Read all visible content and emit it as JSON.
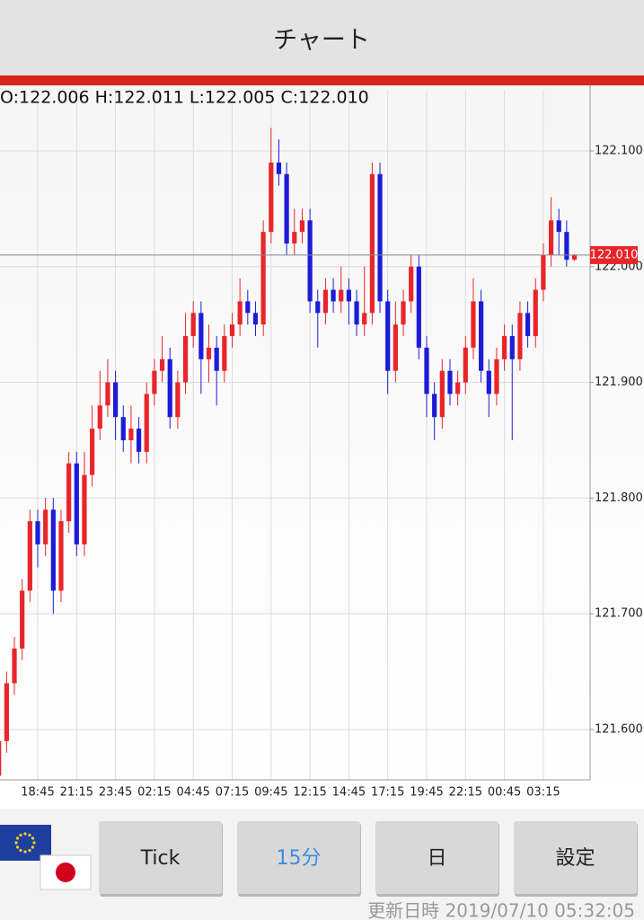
{
  "header": {
    "title": "チャート"
  },
  "chart_data": {
    "type": "candlestick",
    "ohlc_text": "O:122.006 H:122.011 L:122.005 C:122.010",
    "categories": [
      null,
      null,
      null,
      null,
      null,
      "18:45",
      null,
      null,
      null,
      null,
      "21:15",
      null,
      null,
      null,
      null,
      "23:45",
      null,
      null,
      null,
      null,
      "02:15",
      null,
      null,
      null,
      null,
      "04:45",
      null,
      null,
      null,
      null,
      "07:15",
      null,
      null,
      null,
      null,
      "09:45",
      null,
      null,
      null,
      null,
      "12:15",
      null,
      null,
      null,
      null,
      "14:45",
      null,
      null,
      null,
      null,
      "17:15",
      null,
      null,
      null,
      null,
      "19:45",
      null,
      null,
      null,
      null,
      "22:15",
      null,
      null,
      null,
      null,
      "00:45",
      null,
      null,
      null,
      null,
      "03:15",
      null,
      null,
      null,
      null
    ],
    "open": [
      121.56,
      121.59,
      121.64,
      121.67,
      121.72,
      121.78,
      121.76,
      121.79,
      121.72,
      121.78,
      121.83,
      121.76,
      121.82,
      121.86,
      121.88,
      121.9,
      121.87,
      121.85,
      121.86,
      121.84,
      121.89,
      121.91,
      121.92,
      121.87,
      121.9,
      121.94,
      121.96,
      121.92,
      121.93,
      121.91,
      121.94,
      121.95,
      121.97,
      121.96,
      121.95,
      122.03,
      122.09,
      122.08,
      122.02,
      122.03,
      122.04,
      121.97,
      121.96,
      121.98,
      121.97,
      121.98,
      121.97,
      121.95,
      121.96,
      122.08,
      121.97,
      121.91,
      121.95,
      121.97,
      122.0,
      121.93,
      121.89,
      121.87,
      121.91,
      121.89,
      121.9,
      121.93,
      121.97,
      121.91,
      121.89,
      121.92,
      121.94,
      121.92,
      121.96,
      121.94,
      121.98,
      122.01,
      122.04,
      122.03,
      122.006
    ],
    "high": [
      121.6,
      121.65,
      121.68,
      121.73,
      121.79,
      121.79,
      121.8,
      121.8,
      121.79,
      121.84,
      121.84,
      121.84,
      121.88,
      121.91,
      121.92,
      121.91,
      121.88,
      121.88,
      121.87,
      121.9,
      121.92,
      121.94,
      121.93,
      121.91,
      121.96,
      121.97,
      121.97,
      121.95,
      121.94,
      121.95,
      121.96,
      121.99,
      121.98,
      121.97,
      122.04,
      122.12,
      122.11,
      122.09,
      122.05,
      122.05,
      122.05,
      121.98,
      121.99,
      121.99,
      122.0,
      121.99,
      121.98,
      122.0,
      122.09,
      122.09,
      121.98,
      121.97,
      121.98,
      122.01,
      122.01,
      121.94,
      121.9,
      121.92,
      121.92,
      121.91,
      121.94,
      121.99,
      121.98,
      121.92,
      121.93,
      121.95,
      121.95,
      121.97,
      121.97,
      121.99,
      122.02,
      122.06,
      122.05,
      122.04,
      122.011
    ],
    "low": [
      121.55,
      121.58,
      121.63,
      121.66,
      121.71,
      121.74,
      121.75,
      121.7,
      121.71,
      121.77,
      121.75,
      121.75,
      121.81,
      121.85,
      121.87,
      121.85,
      121.84,
      121.83,
      121.83,
      121.83,
      121.88,
      121.9,
      121.86,
      121.86,
      121.89,
      121.93,
      121.89,
      121.9,
      121.88,
      121.9,
      121.93,
      121.94,
      121.95,
      121.94,
      121.94,
      122.02,
      122.07,
      122.01,
      122.01,
      122.02,
      121.96,
      121.93,
      121.95,
      121.96,
      121.96,
      121.95,
      121.94,
      121.94,
      121.95,
      121.96,
      121.89,
      121.9,
      121.94,
      121.96,
      121.92,
      121.87,
      121.85,
      121.86,
      121.88,
      121.88,
      121.89,
      121.92,
      121.9,
      121.87,
      121.88,
      121.91,
      121.85,
      121.91,
      121.93,
      121.93,
      121.97,
      122.0,
      122.01,
      122.0,
      122.005
    ],
    "close": [
      121.59,
      121.64,
      121.67,
      121.72,
      121.78,
      121.76,
      121.79,
      121.72,
      121.78,
      121.83,
      121.76,
      121.82,
      121.86,
      121.88,
      121.9,
      121.87,
      121.85,
      121.86,
      121.84,
      121.89,
      121.91,
      121.92,
      121.87,
      121.9,
      121.94,
      121.96,
      121.92,
      121.93,
      121.91,
      121.94,
      121.95,
      121.97,
      121.96,
      121.95,
      122.03,
      122.09,
      122.08,
      122.02,
      122.03,
      122.04,
      121.97,
      121.96,
      121.98,
      121.97,
      121.98,
      121.97,
      121.95,
      121.96,
      122.08,
      121.97,
      121.91,
      121.95,
      121.97,
      122.0,
      121.93,
      121.89,
      121.87,
      121.91,
      121.89,
      121.9,
      121.93,
      121.97,
      121.91,
      121.89,
      121.92,
      121.94,
      121.92,
      121.96,
      121.94,
      121.98,
      122.01,
      122.04,
      122.03,
      122.006,
      122.01
    ],
    "up_color": "#e8262a",
    "down_color": "#1c1cd8",
    "ylim": [
      121.5565,
      122.1528
    ],
    "yticks": [
      {
        "value": 121.6,
        "label": "121.600"
      },
      {
        "value": 121.7,
        "label": "121.700"
      },
      {
        "value": 121.8,
        "label": "121.800"
      },
      {
        "value": 121.9,
        "label": "121.900"
      },
      {
        "value": 122.0,
        "label": "122.000"
      },
      {
        "value": 122.1,
        "label": "122.100"
      }
    ],
    "current_price": {
      "value": 122.01,
      "label": "122.010"
    },
    "grid": true
  },
  "buttons": [
    "Tick",
    "15分",
    "日",
    "設定"
  ],
  "footer": {
    "updated": "更新日時 2019/07/10 05:32:05"
  }
}
